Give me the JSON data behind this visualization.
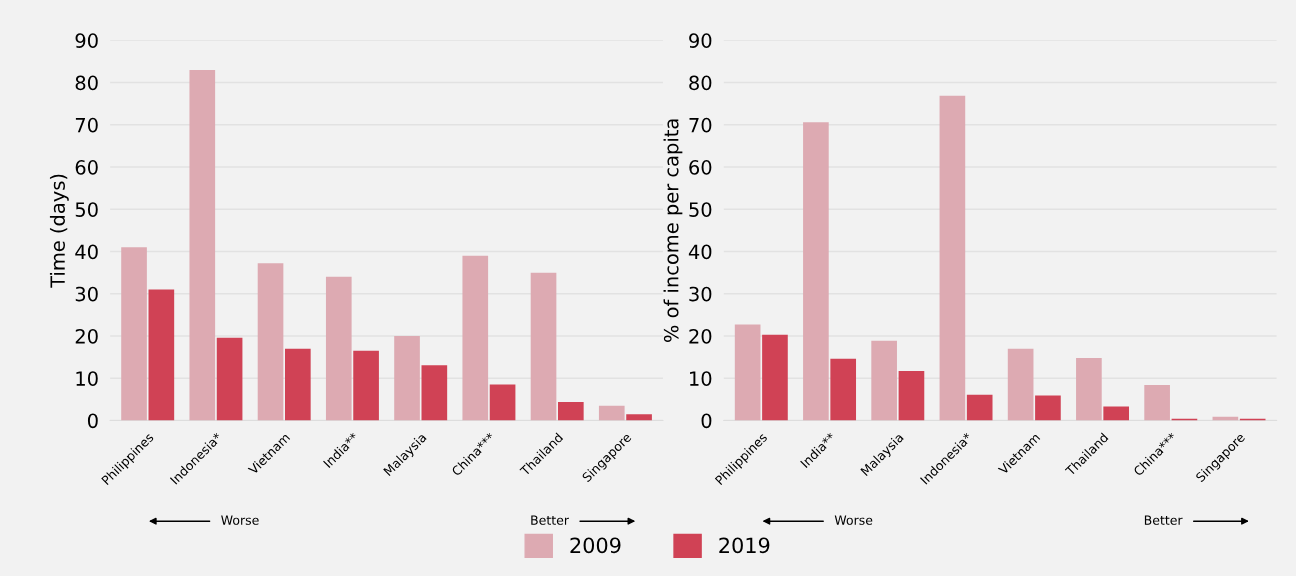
{
  "chart_data": [
    {
      "type": "bar",
      "ylabel": "Time (days)",
      "categories": [
        "Philippines",
        "Indonesia*",
        "Vietnam",
        "India**",
        "Malaysia",
        "China***",
        "Thailand",
        "Singapore"
      ],
      "series": [
        {
          "name": "2009",
          "color": "#ddaab2",
          "values": [
            41,
            83,
            37.2,
            34,
            20,
            39,
            35,
            3.5
          ]
        },
        {
          "name": "2019",
          "color": "#d04255",
          "values": [
            31,
            19.6,
            17,
            16.5,
            13.1,
            8.5,
            4.4,
            1.5
          ]
        }
      ],
      "ylim": [
        0,
        90
      ],
      "yticks": [
        0,
        10,
        20,
        30,
        40,
        50,
        60,
        70,
        80,
        90
      ],
      "grid": "y",
      "legend": "bottom",
      "annotations": [
        "Worse",
        "Better"
      ]
    },
    {
      "type": "bar",
      "ylabel": "% of income per capita",
      "categories": [
        "Philippines",
        "India**",
        "Malaysia",
        "Indonesia*",
        "Vietnam",
        "Thailand",
        "China***",
        "Singapore"
      ],
      "series": [
        {
          "name": "2009",
          "color": "#ddaab2",
          "values": [
            22.7,
            70.6,
            18.9,
            76.9,
            17,
            14.8,
            8.4,
            0.9
          ]
        },
        {
          "name": "2019",
          "color": "#d04255",
          "values": [
            20.3,
            14.6,
            11.7,
            6.1,
            5.9,
            3.3,
            0.4,
            0.4
          ]
        }
      ],
      "ylim": [
        0,
        90
      ],
      "yticks": [
        0,
        10,
        20,
        30,
        40,
        50,
        60,
        70,
        80,
        90
      ],
      "grid": "y",
      "legend": "bottom",
      "annotations": [
        "Worse",
        "Better"
      ]
    }
  ]
}
